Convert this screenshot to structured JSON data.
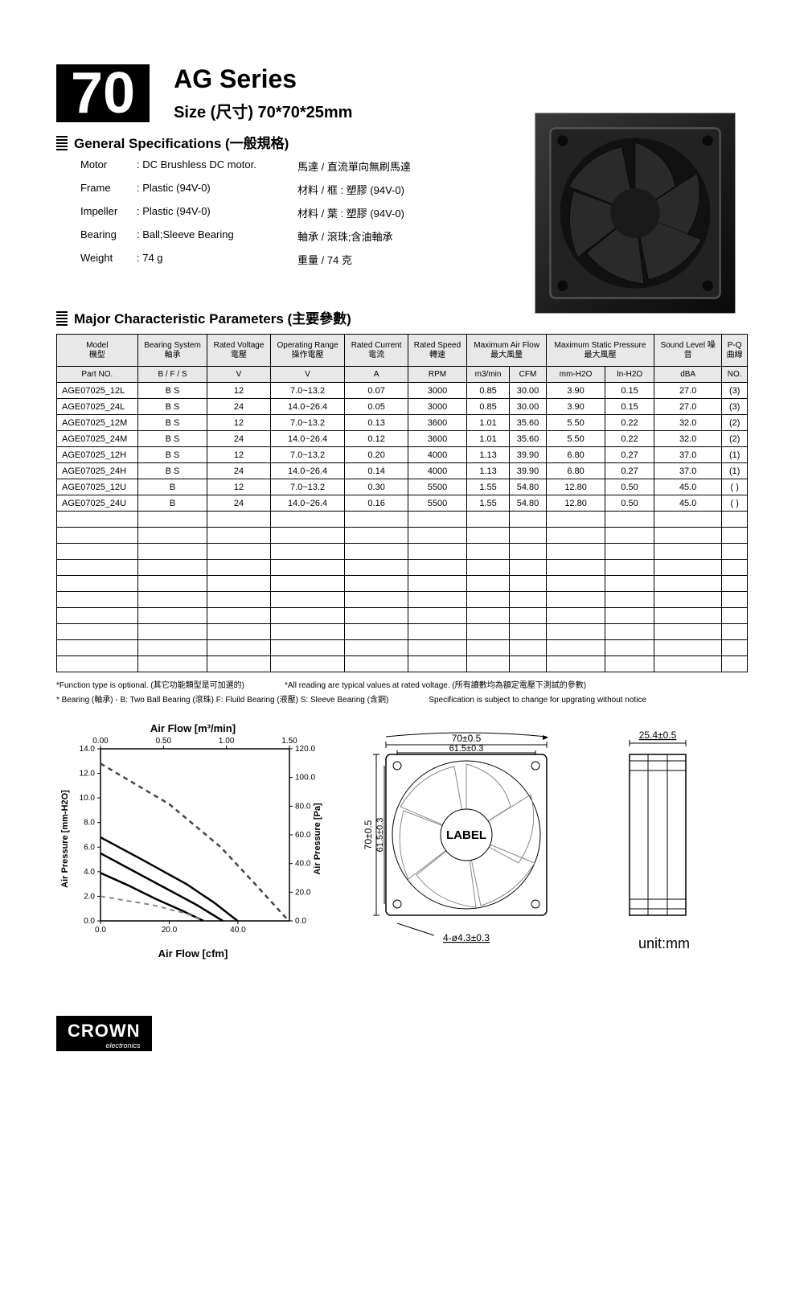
{
  "header": {
    "number": "70",
    "series": "AG Series",
    "size_label": "Size (尺寸) 70*70*25mm"
  },
  "general_specs": {
    "title": "General Specifications  (一般規格)",
    "rows": [
      {
        "label": "Motor",
        "en": "DC Brushless DC motor.",
        "cn": "馬達 / 直流單向無刷馬達"
      },
      {
        "label": "Frame",
        "en": "Plastic (94V-0)",
        "cn": "材料 / 框 : 塑膠 (94V-0)"
      },
      {
        "label": "Impeller",
        "en": "Plastic (94V-0)",
        "cn": "材料 / 葉 : 塑膠 (94V-0)"
      },
      {
        "label": "Bearing",
        "en": "Ball;Sleeve Bearing",
        "cn": "軸承 / 滾珠;含油軸承"
      },
      {
        "label": "Weight",
        "en": "74  g",
        "cn": "重量 / 74  克"
      }
    ]
  },
  "major": {
    "title": "Major Characteristic Parameters (主要參數)",
    "headers1": [
      {
        "t1": "Model",
        "t2": "機型",
        "span": 1
      },
      {
        "t1": "Bearing System",
        "t2": "軸承",
        "span": 1
      },
      {
        "t1": "Rated Voltage",
        "t2": "電壓",
        "span": 1
      },
      {
        "t1": "Operating Range",
        "t2": "操作電壓",
        "span": 1
      },
      {
        "t1": "Rated Current",
        "t2": "電流",
        "span": 1
      },
      {
        "t1": "Rated Speed",
        "t2": "轉速",
        "span": 1
      },
      {
        "t1": "Maximum Air Flow",
        "t2": "最大風量",
        "span": 2
      },
      {
        "t1": "Maximum Static Pressure",
        "t2": "最大風壓",
        "span": 2
      },
      {
        "t1": "Sound Level   噪",
        "t2": "音",
        "span": 1
      },
      {
        "t1": "P-Q",
        "t2": "曲線",
        "span": 1
      }
    ],
    "headers2": [
      "Part NO.",
      "B / F / S",
      "V",
      "V",
      "A",
      "RPM",
      "m3/min",
      "CFM",
      "mm-H2O",
      "In-H2O",
      "dBA",
      "NO."
    ],
    "rows": [
      [
        "AGE07025_12L",
        "B S",
        "12",
        "7.0~13.2",
        "0.07",
        "3000",
        "0.85",
        "30.00",
        "3.90",
        "0.15",
        "27.0",
        "(3)"
      ],
      [
        "AGE07025_24L",
        "B S",
        "24",
        "14.0~26.4",
        "0.05",
        "3000",
        "0.85",
        "30.00",
        "3.90",
        "0.15",
        "27.0",
        "(3)"
      ],
      [
        "AGE07025_12M",
        "B S",
        "12",
        "7.0~13.2",
        "0.13",
        "3600",
        "1.01",
        "35.60",
        "5.50",
        "0.22",
        "32.0",
        "(2)"
      ],
      [
        "AGE07025_24M",
        "B S",
        "24",
        "14.0~26.4",
        "0.12",
        "3600",
        "1.01",
        "35.60",
        "5.50",
        "0.22",
        "32.0",
        "(2)"
      ],
      [
        "AGE07025_12H",
        "B S",
        "12",
        "7.0~13.2",
        "0.20",
        "4000",
        "1.13",
        "39.90",
        "6.80",
        "0.27",
        "37.0",
        "(1)"
      ],
      [
        "AGE07025_24H",
        "B S",
        "24",
        "14.0~26.4",
        "0.14",
        "4000",
        "1.13",
        "39.90",
        "6.80",
        "0.27",
        "37.0",
        "(1)"
      ],
      [
        "AGE07025_12U",
        "B",
        "12",
        "7.0~13.2",
        "0.30",
        "5500",
        "1.55",
        "54.80",
        "12.80",
        "0.50",
        "45.0",
        "( )"
      ],
      [
        "AGE07025_24U",
        "B",
        "24",
        "14.0~26.4",
        "0.16",
        "5500",
        "1.55",
        "54.80",
        "12.80",
        "0.50",
        "45.0",
        "( )"
      ]
    ],
    "empty_rows": 10
  },
  "footnotes": {
    "l1a": "*Function type is optional. (其它功能類型是可加選的)",
    "l1b": "*All reading are typical values at rated voltage. (所有讀數均為額定電壓下測試的參數)",
    "l2a": "* Bearing (軸承) - B: Two Ball Bearing (滾珠) F: Fluild Bearing (液壓)  S: Sleeve Bearing (含銅)",
    "l2b": "Specification is subject to change for upgrating without notice"
  },
  "chart": {
    "title_top": "Air Flow [m³/min]",
    "title_bottom": "Air Flow [cfm]",
    "ylabel_left": "Air Pressure [mm-H2O]",
    "ylabel_right": "Air Pressure [Pa]",
    "x_top_ticks": [
      "0.00",
      "0.50",
      "1.00",
      "1.50"
    ],
    "x_bottom_ticks": [
      "0.0",
      "20.0",
      "40.0"
    ],
    "y_left_ticks": [
      "14.0",
      "12.0",
      "10.0",
      "8.0",
      "6.0",
      "4.0",
      "2.0",
      "0.0"
    ],
    "y_right_ticks": [
      "120.0",
      "100.0",
      "80.0",
      "60.0",
      "40.0",
      "20.0",
      "0.0"
    ],
    "xlim_top": [
      0,
      1.5
    ],
    "xlim_bottom": [
      0,
      55
    ],
    "ylim_left": [
      0,
      14
    ],
    "curves": [
      {
        "name": "u",
        "style": "dashed",
        "color": "#444444",
        "width": 2.5,
        "points": [
          [
            0,
            12.8
          ],
          [
            20,
            9.5
          ],
          [
            35,
            6.0
          ],
          [
            45,
            3.0
          ],
          [
            54.8,
            0
          ]
        ]
      },
      {
        "name": "1",
        "style": "solid",
        "color": "#000000",
        "width": 2.5,
        "points": [
          [
            0,
            6.8
          ],
          [
            12,
            5.0
          ],
          [
            25,
            3.0
          ],
          [
            33,
            1.5
          ],
          [
            39.9,
            0
          ]
        ]
      },
      {
        "name": "2",
        "style": "solid",
        "color": "#000000",
        "width": 2.5,
        "points": [
          [
            0,
            5.5
          ],
          [
            10,
            4.0
          ],
          [
            20,
            2.5
          ],
          [
            28,
            1.3
          ],
          [
            35.6,
            0
          ]
        ]
      },
      {
        "name": "3",
        "style": "solid",
        "color": "#000000",
        "width": 2.5,
        "points": [
          [
            0,
            3.9
          ],
          [
            8,
            2.9
          ],
          [
            16,
            1.8
          ],
          [
            24,
            0.8
          ],
          [
            30.0,
            0
          ]
        ]
      },
      {
        "name": "g",
        "style": "dashed",
        "color": "#888888",
        "width": 2,
        "points": [
          [
            0,
            2.0
          ],
          [
            15,
            1.3
          ],
          [
            25,
            0.6
          ],
          [
            30,
            0
          ]
        ]
      }
    ],
    "background_color": "#ffffff",
    "grid_color": "#cccccc"
  },
  "dims": {
    "outer": "70±0.5",
    "inner": "61.5±0.3",
    "depth": "25.4±0.5",
    "holes": "4-ø4.3±0.3",
    "label_text": "LABEL",
    "unit": "unit:mm"
  },
  "logo": {
    "main": "CROWN",
    "sub": "electronics"
  }
}
